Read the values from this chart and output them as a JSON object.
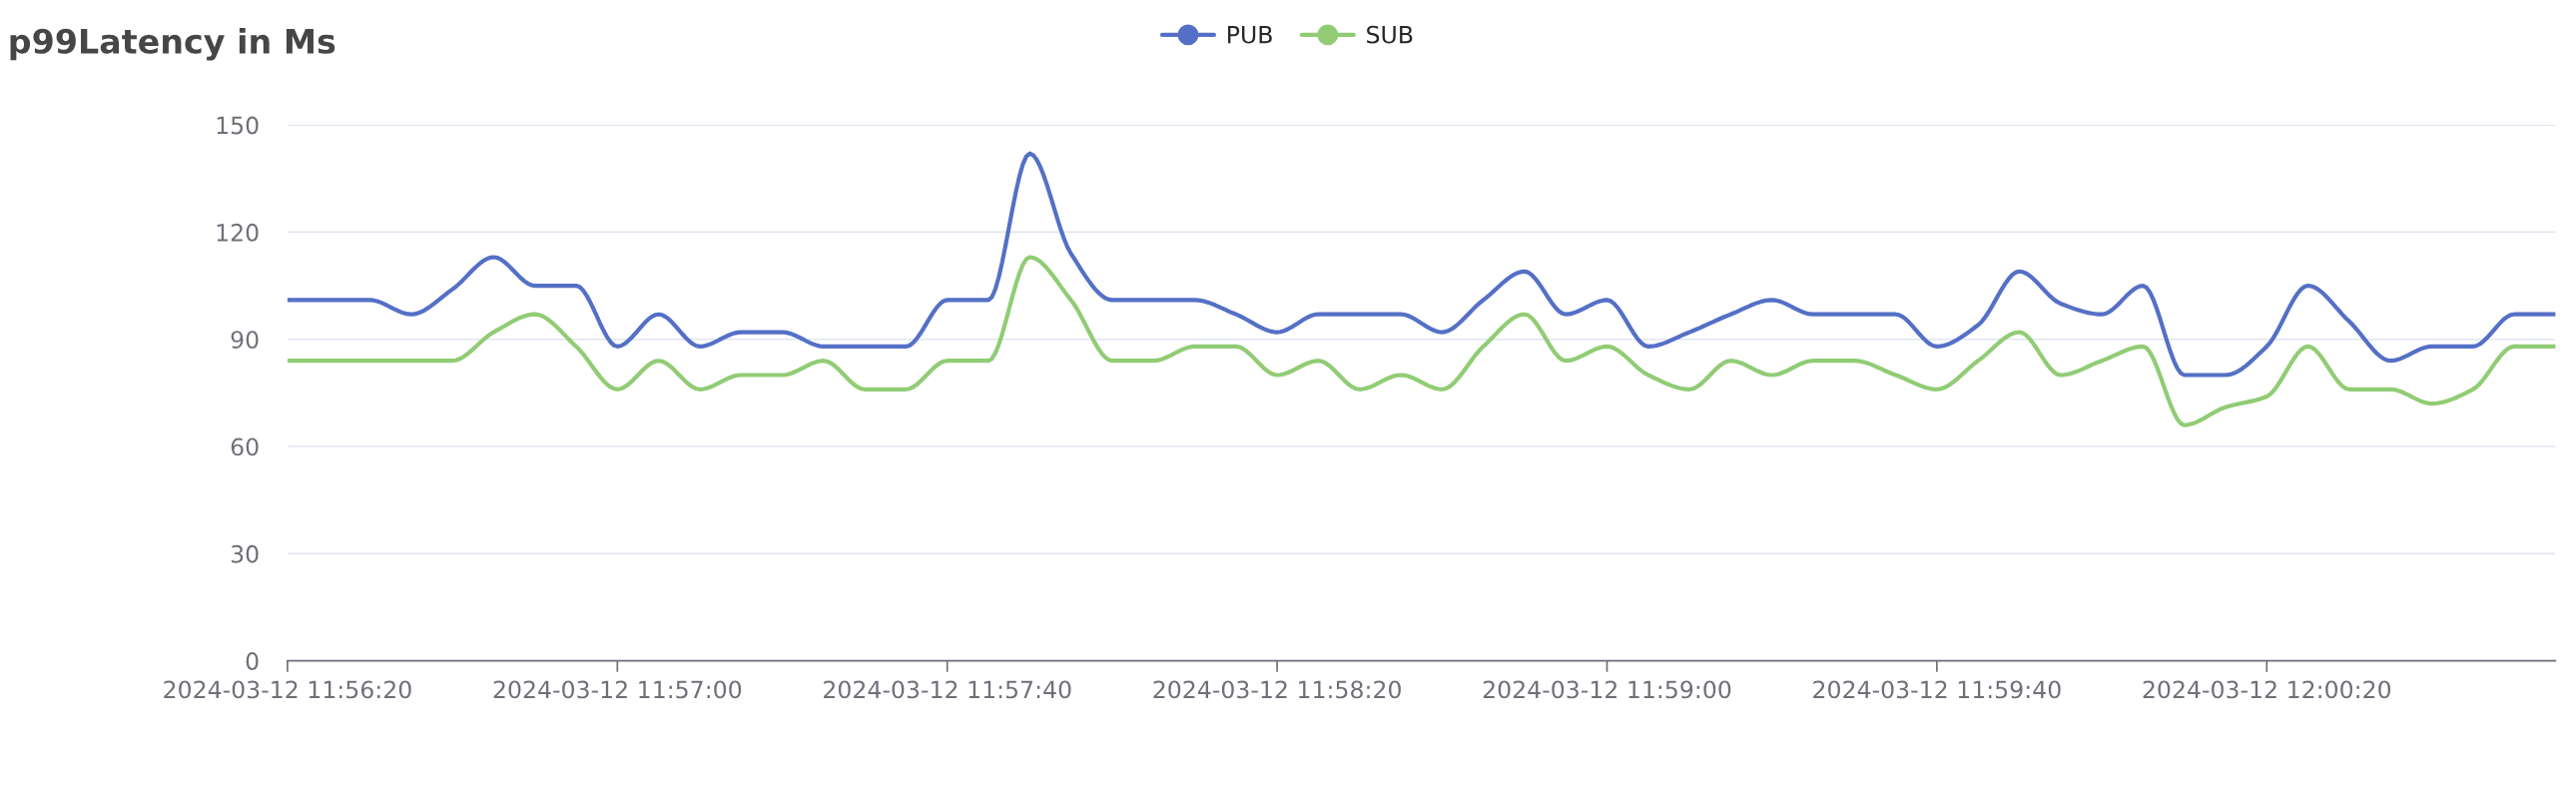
{
  "chart_data": {
    "type": "line",
    "title": "p99Latency in Ms",
    "x": [
      "2024-03-12T11:56:20",
      "2024-03-12T11:56:25",
      "2024-03-12T11:56:30",
      "2024-03-12T11:56:35",
      "2024-03-12T11:56:40",
      "2024-03-12T11:56:45",
      "2024-03-12T11:56:50",
      "2024-03-12T11:56:55",
      "2024-03-12T11:57:00",
      "2024-03-12T11:57:05",
      "2024-03-12T11:57:10",
      "2024-03-12T11:57:15",
      "2024-03-12T11:57:20",
      "2024-03-12T11:57:25",
      "2024-03-12T11:57:30",
      "2024-03-12T11:57:35",
      "2024-03-12T11:57:40",
      "2024-03-12T11:57:45",
      "2024-03-12T11:57:50",
      "2024-03-12T11:57:55",
      "2024-03-12T11:58:00",
      "2024-03-12T11:58:05",
      "2024-03-12T11:58:10",
      "2024-03-12T11:58:15",
      "2024-03-12T11:58:20",
      "2024-03-12T11:58:25",
      "2024-03-12T11:58:30",
      "2024-03-12T11:58:35",
      "2024-03-12T11:58:40",
      "2024-03-12T11:58:45",
      "2024-03-12T11:58:50",
      "2024-03-12T11:58:55",
      "2024-03-12T11:59:00",
      "2024-03-12T11:59:05",
      "2024-03-12T11:59:10",
      "2024-03-12T11:59:15",
      "2024-03-12T11:59:20",
      "2024-03-12T11:59:25",
      "2024-03-12T11:59:30",
      "2024-03-12T11:59:35",
      "2024-03-12T11:59:40",
      "2024-03-12T11:59:45",
      "2024-03-12T11:59:50",
      "2024-03-12T11:59:55",
      "2024-03-12T12:00:00",
      "2024-03-12T12:00:05",
      "2024-03-12T12:00:10",
      "2024-03-12T12:00:15",
      "2024-03-12T12:00:20",
      "2024-03-12T12:00:25",
      "2024-03-12T12:00:30",
      "2024-03-12T12:00:35",
      "2024-03-12T12:00:40",
      "2024-03-12T12:00:45",
      "2024-03-12T12:00:50",
      "2024-03-12T12:00:55"
    ],
    "series": [
      {
        "name": "PUB",
        "color": "#5470c6",
        "values": [
          101,
          101,
          101,
          97,
          104,
          113,
          105,
          105,
          88,
          97,
          88,
          92,
          92,
          88,
          88,
          88,
          101,
          101,
          142,
          114,
          101,
          101,
          101,
          97,
          92,
          97,
          97,
          97,
          92,
          101,
          109,
          97,
          101,
          88,
          92,
          97,
          101,
          97,
          97,
          97,
          88,
          94,
          109,
          100,
          97,
          105,
          80,
          80,
          88,
          105,
          95,
          84,
          88,
          88,
          97,
          97
        ]
      },
      {
        "name": "SUB",
        "color": "#91cc75",
        "values": [
          84,
          84,
          84,
          84,
          84,
          92,
          97,
          88,
          76,
          84,
          76,
          80,
          80,
          84,
          76,
          76,
          84,
          84,
          113,
          101,
          84,
          84,
          88,
          88,
          80,
          84,
          76,
          80,
          76,
          88,
          97,
          84,
          88,
          80,
          76,
          84,
          80,
          84,
          84,
          80,
          76,
          84,
          92,
          80,
          84,
          88,
          66,
          71,
          74,
          88,
          76,
          76,
          72,
          76,
          88,
          88
        ]
      }
    ],
    "xlim": [
      "2024-03-12T11:56:20",
      "2024-03-12T12:00:55"
    ],
    "xticks": [
      {
        "value": "2024-03-12T11:56:20",
        "label": "2024-03-12 11:56:20"
      },
      {
        "value": "2024-03-12T11:57:00",
        "label": "2024-03-12 11:57:00"
      },
      {
        "value": "2024-03-12T11:57:40",
        "label": "2024-03-12 11:57:40"
      },
      {
        "value": "2024-03-12T11:58:20",
        "label": "2024-03-12 11:58:20"
      },
      {
        "value": "2024-03-12T11:59:00",
        "label": "2024-03-12 11:59:00"
      },
      {
        "value": "2024-03-12T11:59:40",
        "label": "2024-03-12 11:59:40"
      },
      {
        "value": "2024-03-12T12:00:20",
        "label": "2024-03-12 12:00:20"
      }
    ],
    "ylim": [
      0,
      150
    ],
    "yticks": [
      0,
      30,
      60,
      90,
      120,
      150
    ],
    "grid": "y",
    "legend": "top",
    "marker": "none",
    "line_style": "solid"
  }
}
